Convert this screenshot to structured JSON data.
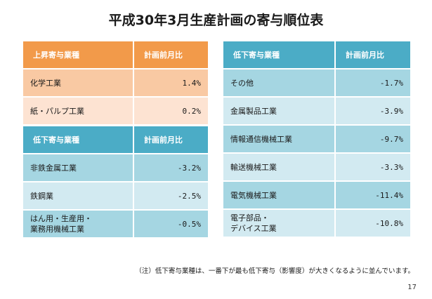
{
  "title": "平成30年3月生産計画の寄与順位表",
  "up_table": {
    "header_name": "上昇寄与業種",
    "header_value": "計画前月比",
    "rows": [
      {
        "name": "化学工業",
        "value": "1.4%"
      },
      {
        "name": "紙・パルプ工業",
        "value": "0.2%"
      }
    ]
  },
  "down_table_left": {
    "header_name": "低下寄与業種",
    "header_value": "計画前月比",
    "rows": [
      {
        "name": "非鉄金属工業",
        "value": "-3.2%"
      },
      {
        "name": "鉄鋼業",
        "value": "-2.5%"
      },
      {
        "name_line1": "はん用・生産用・",
        "name_line2": "業務用機械工業",
        "value": "-0.5%"
      }
    ]
  },
  "down_table_right": {
    "header_name": "低下寄与業種",
    "header_value": "計画前月比",
    "rows": [
      {
        "name": "その他",
        "value": "-1.7%"
      },
      {
        "name": "金属製品工業",
        "value": "-3.9%"
      },
      {
        "name": "情報通信機械工業",
        "value": "-9.7%"
      },
      {
        "name": "輸送機械工業",
        "value": "-3.3%"
      },
      {
        "name": "電気機械工業",
        "value": "-11.4%"
      },
      {
        "name_line1": "電子部品・",
        "name_line2": "デバイス工業",
        "value": "-10.8%"
      }
    ]
  },
  "note": "（注）低下寄与業種は、一番下が最も低下寄与（影響度）が大きくなるように並んでいます。",
  "page_number": "17",
  "colors": {
    "orange_header": "#f29a4a",
    "orange_row": "#f9c9a3",
    "orange_row_light": "#fde3d2",
    "blue_header": "#4bacc6",
    "blue_row": "#a5d6e2",
    "blue_row_light": "#d2eaf1"
  }
}
